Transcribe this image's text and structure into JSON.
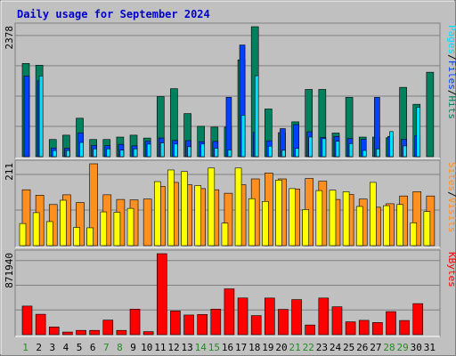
{
  "chart_data": {
    "type": "bar",
    "title": "Daily usage for September 2024",
    "categories": [
      "1",
      "2",
      "3",
      "4",
      "5",
      "6",
      "7",
      "8",
      "9",
      "10",
      "11",
      "12",
      "13",
      "14",
      "15",
      "16",
      "17",
      "18",
      "19",
      "20",
      "21",
      "22",
      "23",
      "24",
      "25",
      "26",
      "27",
      "28",
      "29",
      "30",
      "31"
    ],
    "weekend_days": [
      "1",
      "7",
      "8",
      "14",
      "15",
      "21",
      "22",
      "28",
      "29"
    ],
    "colors": {
      "background": "#c0c0c0",
      "panel": "#c0c0c0",
      "grid": "#808080",
      "title": "#0000cc",
      "weekday_label": "#000000",
      "weekend_label": "#228b22",
      "hits": "#00805c",
      "files": "#0040ff",
      "pages": "#00e0ff",
      "visits": "#ff9020",
      "sites": "#ffff00",
      "kbytes": "#ff0000"
    },
    "panels": [
      {
        "ymax_label": "2378",
        "ymax": 2378,
        "right_labels": [
          {
            "text": "Hits",
            "color": "#00805c"
          },
          {
            "text": "/",
            "color": "#000000"
          },
          {
            "text": "Files",
            "color": "#0040ff"
          },
          {
            "text": "/",
            "color": "#000000"
          },
          {
            "text": "Pages",
            "color": "#00e0ff"
          }
        ],
        "series": [
          {
            "name": "Hits",
            "color": "#00805c",
            "values": [
              1705,
              1673,
              314,
              393,
              703,
              314,
              314,
              358,
              393,
              340,
              1099,
              1244,
              788,
              555,
              540,
              540,
              1770,
              2378,
              872,
              440,
              637,
              1230,
              1230,
              432,
              1085,
              358,
              358,
              345,
              1268,
              958,
              1545
            ]
          },
          {
            "name": "Files",
            "color": "#0040ff",
            "values": [
              1476,
              1388,
              158,
              153,
              436,
              206,
              201,
              226,
              198,
              284,
              341,
              297,
              294,
              274,
              279,
              1087,
              2043,
              442,
              290,
              513,
              587,
              455,
              352,
              371,
              331,
              317,
              1085,
              371,
              318,
              382,
              0
            ]
          },
          {
            "name": "Pages",
            "color": "#00e0ff",
            "values": [
              0,
              1476,
              112,
              112,
              259,
              143,
              143,
              119,
              143,
              230,
              251,
              231,
              182,
              231,
              155,
              123,
              759,
              1481,
              191,
              117,
              151,
              359,
              329,
              282,
              240,
              114,
              142,
              459,
              197,
              903,
              0
            ]
          }
        ]
      },
      {
        "ymax_label": "211",
        "ymax": 211,
        "right_labels": [
          {
            "text": "Visits",
            "color": "#ff9020"
          },
          {
            "text": "/",
            "color": "#000000"
          },
          {
            "text": "Sites",
            "color": "#ff9020"
          }
        ],
        "series": [
          {
            "name": "Visits",
            "color": "#ff9020",
            "values": [
              144,
              130,
              106,
              131,
              111,
              211,
              131,
              119,
              118,
              120,
              153,
              163,
              157,
              147,
              144,
              135,
              157,
              172,
              187,
              172,
              146,
              173,
              166,
              119,
              132,
              120,
              99,
              108,
              128,
              139,
              128
            ]
          },
          {
            "name": "Sites",
            "color": "#ffff00",
            "values": [
              57,
              85,
              62,
              117,
              47,
              46,
              87,
              86,
              96,
              0,
              165,
              195,
              191,
              155,
              200,
              58,
              200,
              121,
              114,
              169,
              147,
              93,
              142,
              143,
              139,
              101,
              163,
              103,
              106,
              59,
              88
            ]
          }
        ]
      },
      {
        "ymax_label": "871940",
        "ymax": 871940,
        "right_labels": [
          {
            "text": "KBytes",
            "color": "#ff0000"
          }
        ],
        "series": [
          {
            "name": "KBytes",
            "color": "#ff0000",
            "values": [
              307612,
              219410,
              82590,
              28015,
              46005,
              46005,
              156790,
              46005,
              274220,
              32360,
              871940,
              254895,
              211445,
              216640,
              274220,
              493055,
              394755,
              205080,
              394110,
              272375,
              377550,
              104020,
              394110,
              300235,
              138225,
              154070,
              130635,
              247990,
              152470,
              334100,
              0
            ]
          }
        ]
      }
    ]
  }
}
